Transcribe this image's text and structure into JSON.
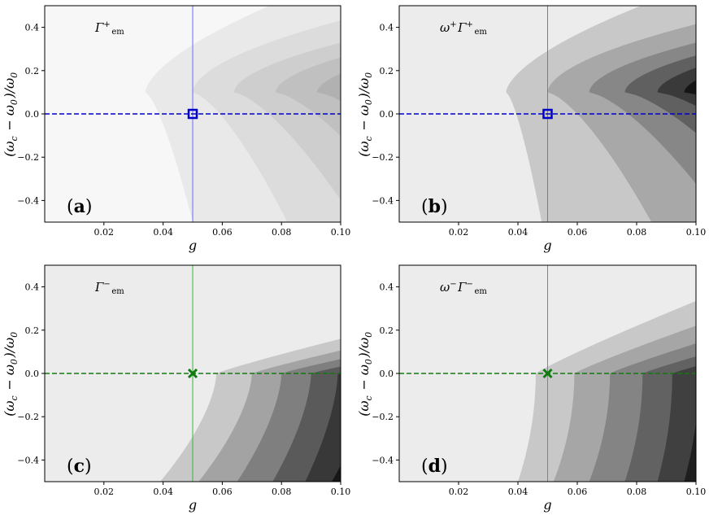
{
  "chart_data": [
    {
      "type": "contour",
      "panel": "a",
      "panel_label": "a",
      "inset_label": "Γ⁺em",
      "xlabel": "g",
      "ylabel": "(ωc − ω0)/ω0",
      "xlim": [
        0.0,
        0.1
      ],
      "ylim": [
        -0.5,
        0.5
      ],
      "xticks": [
        "0.02",
        "0.04",
        "0.06",
        "0.08",
        "0.10"
      ],
      "yticks": [
        "−0.4",
        "−0.2",
        "0.0",
        "0.2",
        "0.4"
      ],
      "background_color": "#f7f7f7",
      "levels": [
        {
          "color": "#e9e9e9",
          "g_center": 0.034,
          "g_bottom": 0.05,
          "slope": 0.12,
          "exp": 1.6
        },
        {
          "color": "#dcdcdc",
          "g_center": 0.05,
          "g_bottom": 0.082,
          "slope": 0.2,
          "exp": 1.8
        },
        {
          "color": "#cecece",
          "g_center": 0.064,
          "g_bottom": 0.105,
          "slope": 0.28,
          "exp": 1.8
        },
        {
          "color": "#c0c0c0",
          "g_center": 0.078,
          "g_bottom": 0.125,
          "slope": 0.32,
          "exp": 1.8
        },
        {
          "color": "#b1b1b1",
          "g_center": 0.092,
          "g_bottom": 0.145,
          "slope": 0.36,
          "exp": 1.8
        }
      ],
      "marker": {
        "type": "square",
        "g": 0.05,
        "y": 0.0,
        "color": "#0000cc"
      },
      "hline": {
        "y": 0.0,
        "color": "#0000cc",
        "style": "dashed"
      },
      "vline": {
        "g": 0.05,
        "color": "#6b6bff"
      }
    },
    {
      "type": "contour",
      "panel": "b",
      "panel_label": "b",
      "inset_label": "ω⁺Γ⁺em",
      "xlabel": "g",
      "ylabel": "(ωc − ω0)/ω0",
      "xlim": [
        0.0,
        0.1
      ],
      "ylim": [
        -0.5,
        0.5
      ],
      "xticks": [
        "0.02",
        "0.04",
        "0.06",
        "0.08",
        "0.10"
      ],
      "yticks": [
        "−0.4",
        "−0.2",
        "0.0",
        "0.2",
        "0.4"
      ],
      "background_color": "#ececec",
      "levels": [
        {
          "color": "#c8c8c8",
          "g_center": 0.036,
          "g_bottom": 0.048,
          "slope": 0.13,
          "exp": 1.6
        },
        {
          "color": "#a8a8a8",
          "g_center": 0.05,
          "g_bottom": 0.085,
          "slope": 0.22,
          "exp": 1.8
        },
        {
          "color": "#878787",
          "g_center": 0.064,
          "g_bottom": 0.11,
          "slope": 0.28,
          "exp": 1.8
        },
        {
          "color": "#606060",
          "g_center": 0.076,
          "g_bottom": 0.13,
          "slope": 0.32,
          "exp": 1.8
        },
        {
          "color": "#3a3a3a",
          "g_center": 0.087,
          "g_bottom": 0.15,
          "slope": 0.36,
          "exp": 1.8
        },
        {
          "color": "#151515",
          "g_center": 0.096,
          "g_bottom": 0.17,
          "slope": 0.4,
          "exp": 1.8
        }
      ],
      "marker": {
        "type": "square",
        "g": 0.05,
        "y": 0.0,
        "color": "#0000cc"
      },
      "hline": {
        "y": 0.0,
        "color": "#0000cc",
        "style": "dashed"
      },
      "vline": {
        "g": 0.05,
        "color": "#6b6bff"
      }
    },
    {
      "type": "contour",
      "panel": "c",
      "panel_label": "c",
      "inset_label": "Γ⁻em",
      "xlabel": "g",
      "ylabel": "(ωc − ω0)/ω0",
      "xlim": [
        0.0,
        0.1
      ],
      "ylim": [
        -0.5,
        0.5
      ],
      "xticks": [
        "0.02",
        "0.04",
        "0.06",
        "0.08",
        "0.10"
      ],
      "yticks": [
        "−0.4",
        "−0.2",
        "0.0",
        "0.2",
        "0.4"
      ],
      "background_color": "#ececec",
      "levels": [
        {
          "color": "#c8c8c8",
          "g_center": 0.058,
          "g_bottom": 0.039,
          "g_top": 0.205,
          "exp": 1.6
        },
        {
          "color": "#a3a3a3",
          "g_center": 0.07,
          "g_bottom": 0.052,
          "g_top": 0.235,
          "exp": 1.6
        },
        {
          "color": "#7f7f7f",
          "g_center": 0.08,
          "g_bottom": 0.065,
          "g_top": 0.265,
          "exp": 1.6
        },
        {
          "color": "#5a5a5a",
          "g_center": 0.09,
          "g_bottom": 0.077,
          "g_top": 0.295,
          "exp": 1.6
        },
        {
          "color": "#383838",
          "g_center": 0.099,
          "g_bottom": 0.088,
          "g_top": 0.325,
          "exp": 1.6
        },
        {
          "color": "#171717",
          "g_center": 0.11,
          "g_bottom": 0.097,
          "g_top": 0.355,
          "exp": 1.6
        }
      ],
      "marker": {
        "type": "x",
        "g": 0.05,
        "y": 0.0,
        "color": "#117a11"
      },
      "hline": {
        "y": 0.0,
        "color": "#117a11",
        "style": "dashed"
      },
      "vline": {
        "g": 0.05,
        "color": "#3cb43c"
      }
    },
    {
      "type": "contour",
      "panel": "d",
      "panel_label": "d",
      "inset_label": "ω⁻Γ⁻em",
      "xlabel": "g",
      "ylabel": "(ωc − ω0)/ω0",
      "xlim": [
        0.0,
        0.1
      ],
      "ylim": [
        -0.5,
        0.5
      ],
      "xticks": [
        "0.02",
        "0.04",
        "0.06",
        "0.08",
        "0.10"
      ],
      "yticks": [
        "−0.4",
        "−0.2",
        "0.0",
        "0.2",
        "0.4"
      ],
      "background_color": "#ececec",
      "levels": [
        {
          "color": "#c8c8c8",
          "g_center": 0.046,
          "g_bottom": 0.04,
          "g_top": 0.13,
          "exp": 2.0
        },
        {
          "color": "#a6a6a6",
          "g_center": 0.059,
          "g_bottom": 0.052,
          "g_top": 0.16,
          "exp": 2.0
        },
        {
          "color": "#848484",
          "g_center": 0.071,
          "g_bottom": 0.064,
          "g_top": 0.19,
          "exp": 2.0
        },
        {
          "color": "#626262",
          "g_center": 0.082,
          "g_bottom": 0.076,
          "g_top": 0.22,
          "exp": 2.0
        },
        {
          "color": "#404040",
          "g_center": 0.092,
          "g_bottom": 0.087,
          "g_top": 0.25,
          "exp": 2.0
        },
        {
          "color": "#1e1e1e",
          "g_center": 0.101,
          "g_bottom": 0.096,
          "g_top": 0.28,
          "exp": 2.0
        },
        {
          "color": "#050505",
          "g_center": 0.109,
          "g_bottom": 0.1,
          "g_top": 0.31,
          "exp": 2.0
        }
      ],
      "marker": {
        "type": "x",
        "g": 0.05,
        "y": 0.0,
        "color": "#117a11"
      },
      "hline": {
        "y": 0.0,
        "color": "#117a11",
        "style": "dashed"
      },
      "vline": {
        "g": 0.05,
        "color": "#3cb43c"
      }
    }
  ]
}
